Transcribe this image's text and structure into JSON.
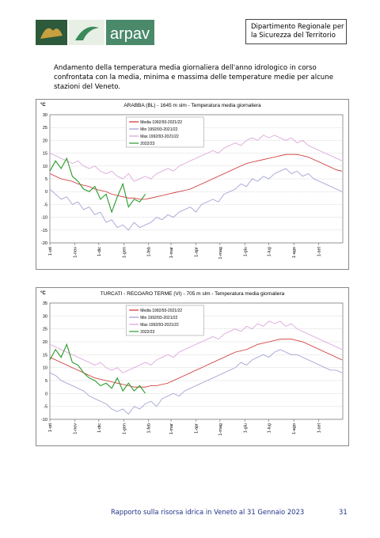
{
  "header": {
    "logo": "arpav",
    "department": [
      "Dipartimento Regionale per",
      "la Sicurezza del Territorio"
    ]
  },
  "intro": "Andamento della temperatura media giornaliera dell'anno idrologico in corso confrontata con la media, minima e massima delle temperature medie per alcune stazioni del Veneto.",
  "chart_data": [
    {
      "type": "line",
      "title": "ARABBA (BL) - 1645 m slm - Temperatura media giornaliera",
      "y_label": "°C",
      "x": [
        0,
        7,
        14,
        21,
        28,
        35,
        42,
        49,
        56,
        63,
        70,
        77,
        84,
        91,
        98,
        105,
        112,
        119,
        126,
        133,
        140,
        147,
        154,
        161,
        168,
        175,
        182,
        189,
        196,
        203,
        210,
        217,
        224,
        231,
        238,
        245,
        252,
        259,
        266,
        273,
        280,
        287,
        294,
        301,
        308,
        315,
        322,
        329,
        336,
        343,
        350,
        357,
        364
      ],
      "xlim": [
        0,
        365
      ],
      "xticks": [
        {
          "value": 0,
          "label": "1-ott"
        },
        {
          "value": 31,
          "label": "1-nov"
        },
        {
          "value": 61,
          "label": "1-dic"
        },
        {
          "value": 92,
          "label": "1-gen"
        },
        {
          "value": 123,
          "label": "1-feb"
        },
        {
          "value": 151,
          "label": "1-mar"
        },
        {
          "value": 182,
          "label": "1-apr"
        },
        {
          "value": 212,
          "label": "1-mag"
        },
        {
          "value": 243,
          "label": "1-giu"
        },
        {
          "value": 273,
          "label": "1-lug"
        },
        {
          "value": 304,
          "label": "1-ago"
        },
        {
          "value": 335,
          "label": "1-set"
        }
      ],
      "ylim": [
        -20,
        30
      ],
      "yticks": [
        -20,
        -15,
        -10,
        -5,
        0,
        5,
        10,
        15,
        20,
        25,
        30
      ],
      "grid": true,
      "series": [
        {
          "name": "Media 1992/93-2021/22",
          "color": "#d03030",
          "values": [
            7,
            6,
            5,
            4.5,
            4,
            3,
            2.5,
            2,
            1,
            0.5,
            0,
            -1,
            -1.5,
            -2,
            -2.5,
            -2.5,
            -3,
            -3,
            -2.5,
            -2,
            -1.5,
            -1,
            -0.5,
            0,
            0.5,
            1,
            2,
            3,
            4,
            5,
            6,
            7,
            8,
            9,
            10,
            11,
            11.5,
            12,
            12.5,
            13,
            13.5,
            14,
            14.5,
            14.5,
            14.5,
            14,
            13.5,
            12.5,
            11.5,
            10.5,
            9.5,
            8.5,
            8
          ]
        },
        {
          "name": "Min 1992/93-2021/22",
          "color": "#9a9ad0",
          "values": [
            1,
            -1,
            -3,
            -2,
            -5,
            -4,
            -7,
            -6,
            -9,
            -8,
            -12,
            -11,
            -14,
            -13,
            -15,
            -12,
            -14,
            -13,
            -12,
            -10,
            -11,
            -9,
            -10,
            -8,
            -7,
            -6,
            -8,
            -5,
            -4,
            -3,
            -4,
            -1,
            0,
            1,
            3,
            2,
            5,
            4,
            6,
            5,
            7,
            8,
            9,
            7,
            8,
            6,
            7,
            5,
            4,
            3,
            2,
            1,
            0
          ]
        },
        {
          "name": "Max 1992/93-2021/22",
          "color": "#d8a0d8",
          "values": [
            15,
            14,
            13,
            12,
            11,
            12,
            10,
            9,
            10,
            8,
            7,
            8,
            6,
            5,
            7,
            4,
            5,
            6,
            5,
            7,
            8,
            9,
            8,
            10,
            11,
            12,
            13,
            14,
            15,
            16,
            15,
            17,
            18,
            19,
            18,
            20,
            21,
            20,
            22,
            21,
            22,
            21,
            20,
            21,
            19,
            20,
            18,
            17,
            16,
            15,
            14,
            13,
            12
          ]
        },
        {
          "name": "2022/23",
          "color": "#2a9a2a",
          "values": [
            8,
            12,
            9,
            13,
            6,
            4,
            1,
            0,
            2,
            -3,
            -1,
            -8,
            -2,
            3,
            -6,
            -3,
            -4,
            -1,
            null,
            null,
            null,
            null,
            null,
            null,
            null,
            null,
            null,
            null,
            null,
            null,
            null,
            null,
            null,
            null,
            null,
            null,
            null,
            null,
            null,
            null,
            null,
            null,
            null,
            null,
            null,
            null,
            null,
            null,
            null,
            null,
            null,
            null,
            null
          ]
        }
      ]
    },
    {
      "type": "line",
      "title": "TURCATI - RECOARO TERME (VI) - 705 m slm - Temperatura media giornaliera",
      "y_label": "°C",
      "x": [
        0,
        7,
        14,
        21,
        28,
        35,
        42,
        49,
        56,
        63,
        70,
        77,
        84,
        91,
        98,
        105,
        112,
        119,
        126,
        133,
        140,
        147,
        154,
        161,
        168,
        175,
        182,
        189,
        196,
        203,
        210,
        217,
        224,
        231,
        238,
        245,
        252,
        259,
        266,
        273,
        280,
        287,
        294,
        301,
        308,
        315,
        322,
        329,
        336,
        343,
        350,
        357,
        364
      ],
      "xlim": [
        0,
        365
      ],
      "xticks": [
        {
          "value": 0,
          "label": "1-ott"
        },
        {
          "value": 31,
          "label": "1-nov"
        },
        {
          "value": 61,
          "label": "1-dic"
        },
        {
          "value": 92,
          "label": "1-gen"
        },
        {
          "value": 123,
          "label": "1-feb"
        },
        {
          "value": 151,
          "label": "1-mar"
        },
        {
          "value": 182,
          "label": "1-apr"
        },
        {
          "value": 212,
          "label": "1-mag"
        },
        {
          "value": 243,
          "label": "1-giu"
        },
        {
          "value": 273,
          "label": "1-lug"
        },
        {
          "value": 304,
          "label": "1-ago"
        },
        {
          "value": 335,
          "label": "1-set"
        }
      ],
      "ylim": [
        -10,
        35
      ],
      "yticks": [
        -10,
        -5,
        0,
        5,
        10,
        15,
        20,
        25,
        30,
        35
      ],
      "grid": true,
      "series": [
        {
          "name": "Media 1992/93-2021/22",
          "color": "#d03030",
          "values": [
            14,
            13,
            12,
            11,
            10,
            9,
            8,
            7,
            6,
            5.5,
            5,
            4.5,
            4,
            3.5,
            3,
            2.5,
            2.5,
            2.5,
            3,
            3,
            3.5,
            4,
            5,
            6,
            7,
            8,
            9,
            10,
            11,
            12,
            13,
            14,
            15,
            16,
            16.5,
            17,
            18,
            19,
            19.5,
            20,
            20.5,
            21,
            21,
            21,
            20.5,
            20,
            19,
            18,
            17,
            16,
            15,
            14,
            13
          ]
        },
        {
          "name": "Min 1992/93-2021/22",
          "color": "#9a9ad0",
          "values": [
            8,
            7,
            5,
            4,
            3,
            2,
            1,
            -1,
            -2,
            -3,
            -4,
            -6,
            -7,
            -6,
            -8,
            -5,
            -6,
            -4,
            -3,
            -5,
            -2,
            -1,
            0,
            -1,
            1,
            2,
            3,
            4,
            5,
            6,
            7,
            8,
            9,
            10,
            12,
            11,
            13,
            14,
            15,
            14,
            16,
            17,
            16,
            15,
            15,
            14,
            13,
            12,
            11,
            10,
            9,
            9,
            8
          ]
        },
        {
          "name": "Max 1992/93-2021/22",
          "color": "#d8a0d8",
          "values": [
            19,
            18,
            17,
            16,
            15,
            14,
            13,
            12,
            11,
            12,
            10,
            9,
            10,
            8,
            9,
            10,
            11,
            12,
            11,
            13,
            14,
            15,
            14,
            16,
            17,
            18,
            19,
            20,
            21,
            22,
            21,
            23,
            24,
            25,
            24,
            26,
            25,
            27,
            26,
            28,
            27,
            28,
            26,
            27,
            25,
            24,
            23,
            22,
            21,
            20,
            19,
            18,
            17
          ]
        },
        {
          "name": "2022/23",
          "color": "#2a9a2a",
          "values": [
            13,
            17,
            14,
            19,
            12,
            11,
            8,
            6,
            5,
            3,
            4,
            2,
            6,
            1,
            4,
            1,
            3,
            0,
            null,
            null,
            null,
            null,
            null,
            null,
            null,
            null,
            null,
            null,
            null,
            null,
            null,
            null,
            null,
            null,
            null,
            null,
            null,
            null,
            null,
            null,
            null,
            null,
            null,
            null,
            null,
            null,
            null,
            null,
            null,
            null,
            null,
            null,
            null
          ]
        }
      ]
    }
  ],
  "footer": {
    "text": "Rapporto sulla risorsa idrica in Veneto al 31 Gennaio 2023",
    "page": "31"
  }
}
